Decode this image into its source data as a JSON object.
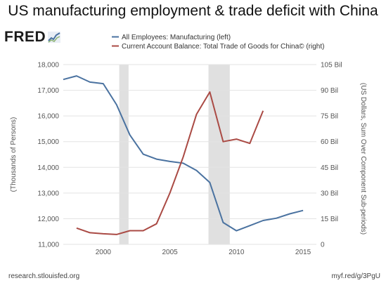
{
  "title": "US manufacturing employment & trade deficit with China",
  "logo": {
    "text": "FRED"
  },
  "footer": {
    "source": "research.stlouisfed.org",
    "link": "myf.red/g/3PgU"
  },
  "chart_data": {
    "type": "line",
    "title": "US manufacturing employment & trade deficit with China",
    "xlim": [
      1997,
      2016
    ],
    "x_ticks": [
      "2000",
      "2005",
      "2010",
      "2015"
    ],
    "x_tick_values": [
      2000,
      2005,
      2010,
      2015
    ],
    "recessions": [
      [
        2001.2,
        2001.9
      ],
      [
        2007.9,
        2009.5
      ]
    ],
    "grid": true,
    "legend_placement": "top-left",
    "left_axis": {
      "label": "(Thousands of Persons)",
      "range": [
        11000,
        18000
      ],
      "ticks": [
        "11,000",
        "12,000",
        "13,000",
        "14,000",
        "15,000",
        "16,000",
        "17,000",
        "18,000"
      ],
      "tick_values": [
        11000,
        12000,
        13000,
        14000,
        15000,
        16000,
        17000,
        18000
      ]
    },
    "right_axis": {
      "label": "(US Dollars, Sum Over Component Sub-periods)",
      "range": [
        0,
        105
      ],
      "ticks": [
        "0",
        "15 Bil",
        "30 Bil",
        "45 Bil",
        "60 Bil",
        "75 Bil",
        "90 Bil",
        "105 Bil"
      ],
      "tick_values": [
        0,
        15,
        30,
        45,
        60,
        75,
        90,
        105
      ]
    },
    "series": [
      {
        "name": "All Employees: Manufacturing (left)",
        "axis": "left",
        "color": "#4a72a0",
        "x": [
          1997,
          1998,
          1999,
          2000,
          2001,
          2002,
          2003,
          2004,
          2005,
          2006,
          2007,
          2008,
          2009,
          2010,
          2011,
          2012,
          2013,
          2014,
          2015
        ],
        "y": [
          17420,
          17560,
          17320,
          17260,
          16440,
          15260,
          14510,
          14320,
          14230,
          14160,
          13880,
          13410,
          11850,
          11530,
          11730,
          11930,
          12020,
          12190,
          12320
        ]
      },
      {
        "name": "Current Account Balance: Total Trade of Goods for China© (right)",
        "axis": "right",
        "color": "#aa4a44",
        "x": [
          1998,
          1999,
          2000,
          2001,
          2002,
          2003,
          2004,
          2005,
          2006,
          2007,
          2008,
          2009,
          2010,
          2011,
          2012
        ],
        "y": [
          9.5,
          6.8,
          6.2,
          5.8,
          8.0,
          8.0,
          12.0,
          30.0,
          51.0,
          76.0,
          89.0,
          60.0,
          61.5,
          59.0,
          78.0
        ]
      }
    ]
  }
}
